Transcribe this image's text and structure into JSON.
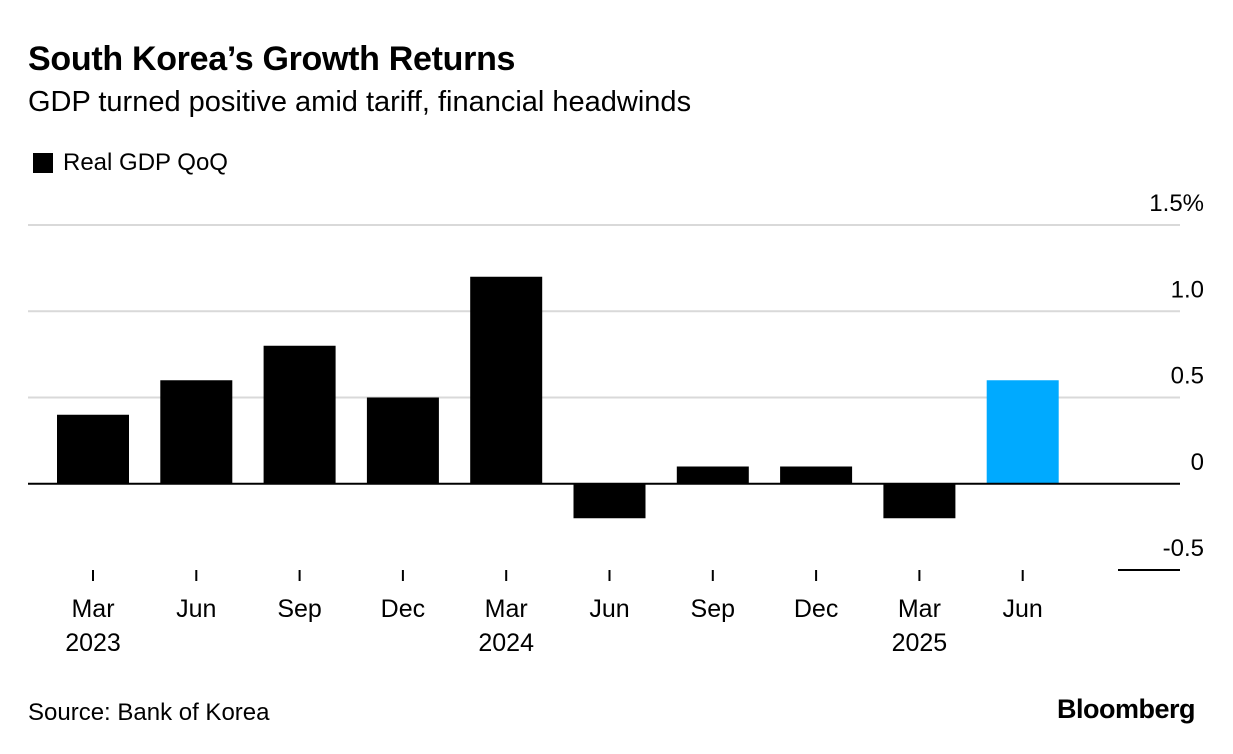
{
  "header": {
    "title": "South Korea’s Growth Returns",
    "subtitle": "GDP turned positive amid tariff, financial headwinds"
  },
  "legend": {
    "label": "Real GDP QoQ",
    "color": "#000000"
  },
  "footer": {
    "source": "Source: Bank of Korea",
    "brand": "Bloomberg"
  },
  "chart_data": {
    "type": "bar",
    "categories": [
      "Mar 2023",
      "Jun 2023",
      "Sep 2023",
      "Dec 2023",
      "Mar 2024",
      "Jun 2024",
      "Sep 2024",
      "Dec 2024",
      "Mar 2025",
      "Jun 2025"
    ],
    "x_tick_month_labels": [
      "Mar",
      "Jun",
      "Sep",
      "Dec",
      "Mar",
      "Jun",
      "Sep",
      "Dec",
      "Mar",
      "Jun"
    ],
    "x_tick_year_labels": [
      "2023",
      "",
      "",
      "",
      "2024",
      "",
      "",
      "",
      "2025",
      ""
    ],
    "series": [
      {
        "name": "Real GDP QoQ",
        "values": [
          0.4,
          0.6,
          0.8,
          0.5,
          1.2,
          -0.2,
          0.1,
          0.1,
          -0.2,
          0.6
        ]
      }
    ],
    "highlight_index": 9,
    "colors": {
      "bar": "#000000",
      "highlight": "#00aaff",
      "grid": "#d9d9d9"
    },
    "y_ticks": [
      -0.5,
      0,
      0.5,
      1.0,
      1.5
    ],
    "y_tick_labels": [
      "-0.5",
      "0",
      "0.5",
      "1.0",
      "1.5%"
    ],
    "ylim": [
      -0.5,
      1.5
    ],
    "y_axis_side": "right",
    "grid": true,
    "legend_position": "top-left",
    "title": "South Korea’s Growth Returns",
    "xlabel": "",
    "ylabel": ""
  }
}
